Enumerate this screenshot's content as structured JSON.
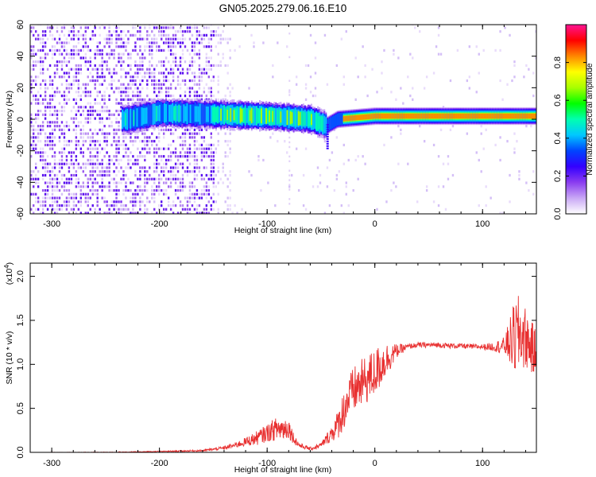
{
  "page": {
    "title": "GN05.2025.279.06.16.E10"
  },
  "chart_data": [
    {
      "type": "heatmap",
      "xlabel": "Height of straight line (km)",
      "ylabel": "Frequency (Hz)",
      "xlim": [
        -320,
        150
      ],
      "ylim": [
        -60,
        60
      ],
      "x_ticks": [
        -300,
        -200,
        -100,
        0,
        100
      ],
      "x_tick_labels": [
        "-300",
        "-200",
        "-100",
        "0",
        "100"
      ],
      "y_ticks": [
        -60,
        -40,
        -20,
        0,
        20,
        40,
        60
      ],
      "y_tick_labels": [
        "-60",
        "-40",
        "-20",
        "0",
        "20",
        "40",
        "60"
      ],
      "colorbar": {
        "label": "Normalized spectral amplitude",
        "range": [
          0,
          1
        ],
        "ticks": [
          0.0,
          0.2,
          0.4,
          0.6,
          0.8
        ],
        "tick_labels": [
          "0.0",
          "0.2",
          "0.4",
          "0.6",
          "0.8"
        ],
        "colors": [
          "#ffffff",
          "#c9a8f5",
          "#8a3cf0",
          "#3300ff",
          "#0044ff",
          "#00c8ff",
          "#00ffb0",
          "#00ff00",
          "#a8ff00",
          "#ffff00",
          "#ff8800",
          "#ff0000",
          "#ff1493"
        ]
      },
      "signal_ridge": [
        {
          "x": -230,
          "f": 0
        },
        {
          "x": -200,
          "f": 4
        },
        {
          "x": -150,
          "f": 3
        },
        {
          "x": -100,
          "f": 2
        },
        {
          "x": -60,
          "f": 0
        },
        {
          "x": -45,
          "f": -4
        },
        {
          "x": -35,
          "f": 0
        },
        {
          "x": 0,
          "f": 2
        },
        {
          "x": 150,
          "f": 2
        }
      ],
      "noise_region_x": [
        -320,
        -150
      ]
    },
    {
      "type": "line",
      "xlabel": "Height of straight line (km)",
      "ylabel": "SNR (10 * v/v)",
      "y_multiplier": "(x10",
      "y_multiplier_exp": "4",
      "y_multiplier_close": ")",
      "xlim": [
        -320,
        150
      ],
      "ylim": [
        0,
        2.15
      ],
      "x_ticks": [
        -300,
        -200,
        -100,
        0,
        100
      ],
      "x_tick_labels": [
        "-300",
        "-200",
        "-100",
        "0",
        "100"
      ],
      "y_ticks": [
        0,
        0.5,
        1.0,
        1.5,
        2.0
      ],
      "y_tick_labels": [
        "0.0",
        "0.5",
        "1.0",
        "1.5",
        "2.0"
      ],
      "color": "#e83030",
      "series": [
        {
          "x": [
            -320,
            -250,
            -200,
            -160,
            -140,
            -130,
            -120,
            -110,
            -100,
            -95,
            -90,
            -85,
            -80,
            -75,
            -70,
            -60,
            -50,
            -45,
            -40,
            -35,
            -30,
            -25,
            -20,
            -15,
            -10,
            -5,
            0,
            5,
            10,
            15,
            20,
            30,
            40,
            50,
            60,
            70,
            80,
            90,
            100,
            110,
            120,
            125,
            130,
            135,
            140,
            145,
            150
          ],
          "y": [
            0.0,
            0.0,
            0.01,
            0.02,
            0.05,
            0.08,
            0.12,
            0.16,
            0.22,
            0.25,
            0.27,
            0.27,
            0.28,
            0.15,
            0.08,
            0.04,
            0.08,
            0.15,
            0.22,
            0.3,
            0.45,
            0.6,
            0.7,
            0.75,
            0.8,
            0.85,
            0.9,
            0.98,
            1.05,
            1.1,
            1.15,
            1.2,
            1.22,
            1.22,
            1.22,
            1.21,
            1.21,
            1.2,
            1.2,
            1.2,
            1.21,
            1.25,
            1.3,
            1.35,
            1.3,
            1.2,
            1.1
          ],
          "noise": [
            0.0,
            0.005,
            0.005,
            0.01,
            0.02,
            0.03,
            0.05,
            0.08,
            0.1,
            0.12,
            0.14,
            0.14,
            0.12,
            0.06,
            0.03,
            0.02,
            0.03,
            0.06,
            0.1,
            0.16,
            0.22,
            0.25,
            0.27,
            0.28,
            0.28,
            0.28,
            0.28,
            0.25,
            0.2,
            0.15,
            0.08,
            0.03,
            0.03,
            0.03,
            0.03,
            0.03,
            0.03,
            0.03,
            0.03,
            0.05,
            0.1,
            0.25,
            0.45,
            0.45,
            0.35,
            0.3,
            0.3
          ]
        }
      ]
    }
  ]
}
